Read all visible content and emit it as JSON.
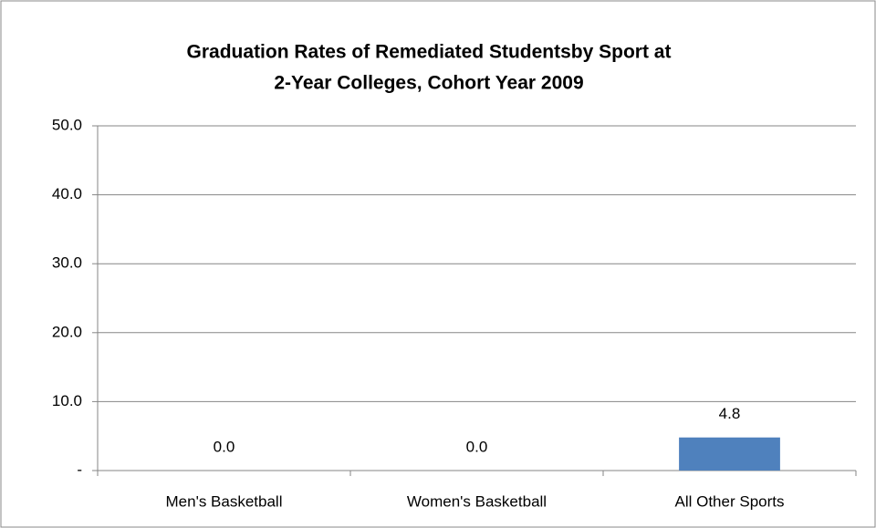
{
  "chart_data": {
    "type": "bar",
    "title": [
      "Graduation Rates of Remediated Studentsby Sport at",
      "2-Year Colleges, Cohort Year 2009"
    ],
    "categories": [
      "Men's Basketball",
      "Women's Basketball",
      "All Other Sports"
    ],
    "values": [
      0,
      0,
      4.8
    ],
    "value_labels": [
      "0.0",
      "0.0",
      "4.8"
    ],
    "color": "#4f81bd",
    "ylim": [
      0,
      50
    ],
    "yticks": [
      {
        "value": 0,
        "label": "-"
      },
      {
        "value": 10,
        "label": "10.0"
      },
      {
        "value": 20,
        "label": "20.0"
      },
      {
        "value": 30,
        "label": "30.0"
      },
      {
        "value": 40,
        "label": "40.0"
      },
      {
        "value": 50,
        "label": "50.0"
      }
    ],
    "grid": true
  }
}
